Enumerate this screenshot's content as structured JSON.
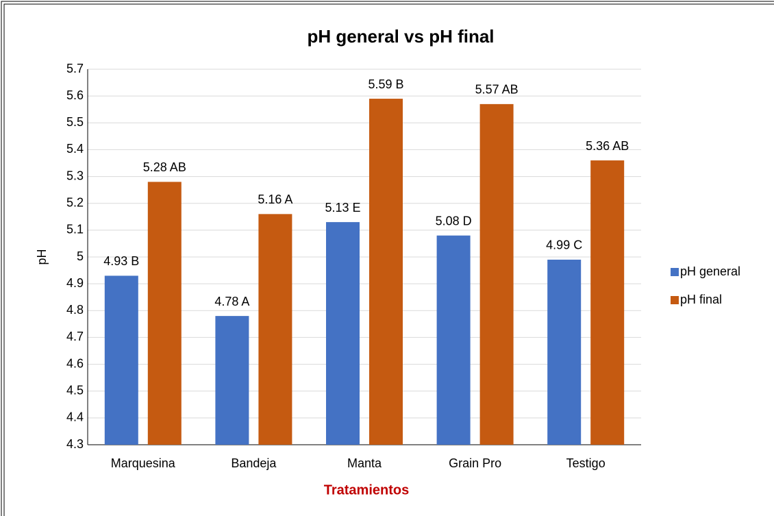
{
  "chart_data": {
    "type": "bar",
    "title": "pH general vs pH final",
    "x_label": "Tratamientos",
    "y_label": "pH",
    "categories": [
      "Marquesina",
      "Bandeja",
      "Manta",
      "Grain Pro",
      "Testigo"
    ],
    "series": [
      {
        "name": "pH general",
        "color": "#4472c4",
        "values": [
          4.93,
          4.78,
          5.13,
          5.08,
          4.99
        ],
        "value_labels": [
          "4.93 B",
          "4.78 A",
          "5.13 E",
          "5.08 D",
          "4.99 C"
        ]
      },
      {
        "name": "pH final",
        "color": "#c55a11",
        "values": [
          5.28,
          5.16,
          5.59,
          5.57,
          5.36
        ],
        "value_labels": [
          "5.28 AB",
          "5.16 A",
          "5.59 B",
          "5.57 AB",
          "5.36 AB"
        ]
      }
    ],
    "ylim": [
      4.3,
      5.7
    ],
    "yticks": [
      4.3,
      4.4,
      4.5,
      4.6,
      4.7,
      4.8,
      4.9,
      5,
      5.1,
      5.2,
      5.3,
      5.4,
      5.5,
      5.6,
      5.7
    ],
    "grid": true,
    "legend": "right"
  }
}
